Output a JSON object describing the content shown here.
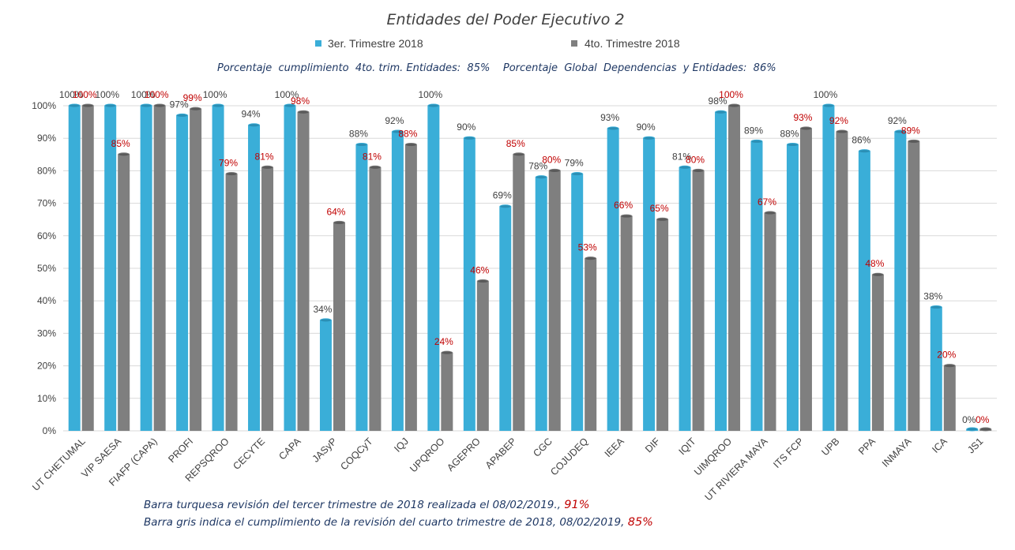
{
  "colors": {
    "series_a": "#3aaed8",
    "series_b": "#7f7f7f",
    "grid": "#d9d9d9",
    "label_b": "#c00000",
    "note": "#1f3864"
  },
  "subtitle": "Porcentaje  cumplimiento  4to. trim. Entidades:  85%    Porcentaje  Global  Dependencias  y Entidades:  86%",
  "notes": {
    "line1_text": "Barra turquesa  revisión  del tercer  trimestre  de  2018  realizada el   08/02/2019.,",
    "line1_value": "91%",
    "line2_text": "Barra gris indica el cumplimiento  de la revisión  del cuarto trimestre de 2018,   08/02/2019,",
    "line2_value": "85%"
  },
  "chart_data": {
    "type": "bar",
    "title": "Entidades del Poder Ejecutivo 2",
    "categories": [
      "UT CHETUMAL",
      "VIP SAESA",
      "FIAFP (CAPA)",
      "PROFI",
      "REPSQROO",
      "CECYTE",
      "CAPA",
      "JASyP",
      "COQCyT",
      "IQJ",
      "UPQROO",
      "AGEPRO",
      "APABEP",
      "CGC",
      "COJUDEQ",
      "IEEA",
      "DIF",
      "IQIT",
      "UIMQROO",
      "UT RIVIERA MAYA",
      "ITS FCP",
      "UPB",
      "PPA",
      "INMAYA",
      "ICA",
      "JS1"
    ],
    "series": [
      {
        "name": "3er. Trimestre 2018",
        "values": [
          100,
          100,
          100,
          97,
          100,
          94,
          100,
          34,
          88,
          92,
          100,
          90,
          69,
          78,
          79,
          93,
          90,
          81,
          98,
          89,
          88,
          100,
          86,
          92,
          38,
          0
        ]
      },
      {
        "name": "4to. Trimestre 2018",
        "values": [
          100,
          85,
          100,
          99,
          79,
          81,
          98,
          64,
          81,
          88,
          24,
          46,
          85,
          80,
          53,
          66,
          65,
          80,
          100,
          67,
          93,
          92,
          48,
          89,
          20,
          0
        ]
      }
    ],
    "ylim": [
      0,
      100
    ],
    "yticks": [
      "0%",
      "10%",
      "20%",
      "30%",
      "40%",
      "50%",
      "60%",
      "70%",
      "80%",
      "90%",
      "100%"
    ],
    "value_suffix": "%",
    "grid": true,
    "legend_position": "top-center"
  }
}
